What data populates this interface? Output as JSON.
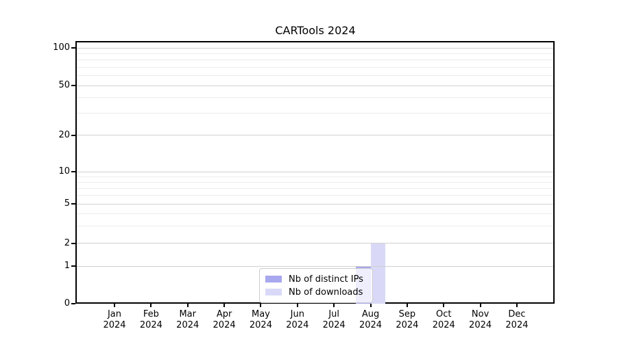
{
  "title": "CARTools 2024",
  "chart_data": {
    "type": "bar",
    "title": "CARTools 2024",
    "categories": [
      "Jan 2024",
      "Feb 2024",
      "Mar 2024",
      "Apr 2024",
      "May 2024",
      "Jun 2024",
      "Jul 2024",
      "Aug 2024",
      "Sep 2024",
      "Oct 2024",
      "Nov 2024",
      "Dec 2024"
    ],
    "months": [
      "Jan",
      "Feb",
      "Mar",
      "Apr",
      "May",
      "Jun",
      "Jul",
      "Aug",
      "Sep",
      "Oct",
      "Nov",
      "Dec"
    ],
    "year_label": "2024",
    "series": [
      {
        "name": "Nb of distinct IPs",
        "color": "#a8a8ee",
        "values": [
          0,
          0,
          0,
          0,
          0,
          0,
          0,
          1,
          0,
          0,
          0,
          0
        ]
      },
      {
        "name": "Nb of downloads",
        "color": "#d9d9f7",
        "values": [
          0,
          0,
          0,
          0,
          0,
          0,
          0,
          2,
          0,
          0,
          0,
          0
        ]
      }
    ],
    "xlabel": "",
    "ylabel": "",
    "yscale": "symlog",
    "yticks_major": [
      0,
      1,
      2,
      5,
      10,
      20,
      50,
      100
    ],
    "yticks_minor": [
      3,
      4,
      6,
      7,
      8,
      9,
      30,
      40,
      60,
      70,
      80,
      90
    ],
    "ylim": [
      0,
      112
    ],
    "grid": true,
    "legend_position": "lower center"
  }
}
